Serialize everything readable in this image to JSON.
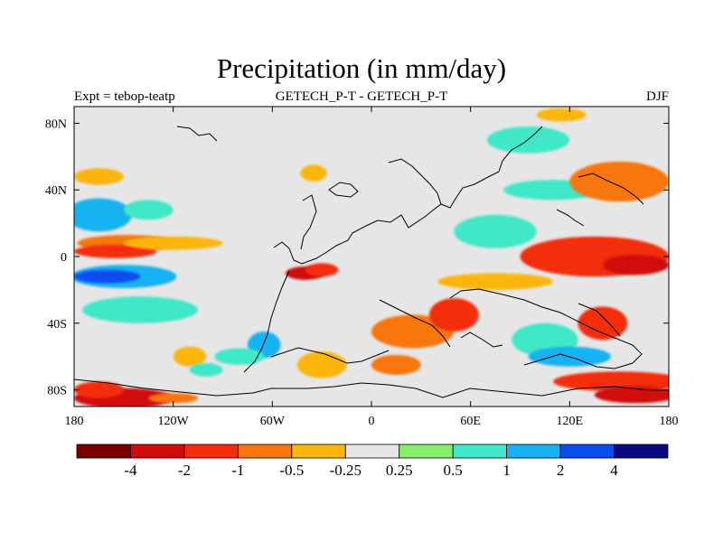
{
  "title": "Precipitation (in mm/day)",
  "left_label": "Expt = tebop-teatp",
  "center_label": "GETECH_P-T - GETECH_P-T",
  "right_label": "DJF",
  "colors": {
    "c1": "#7a0000",
    "c2": "#d10a0a",
    "c3": "#f22d0d",
    "c4": "#f7760e",
    "c5": "#fbb50d",
    "neutral": "#e6e6e6",
    "c6": "#86ef6a",
    "c7": "#3fe8c8",
    "c8": "#18b2f2",
    "c9": "#0b4ef0",
    "c10": "#0a0a80",
    "coast": "#000000"
  },
  "colorbar": {
    "bins": [
      "#7a0000",
      "#d10a0a",
      "#f22d0d",
      "#f7760e",
      "#fbb50d",
      "#e6e6e6",
      "#86ef6a",
      "#3fe8c8",
      "#18b2f2",
      "#0b4ef0",
      "#0a0a80"
    ],
    "labels": [
      "-4",
      "-2",
      "-1",
      "-0.5",
      "-0.25",
      "0.25",
      "0.5",
      "1",
      "2",
      "4"
    ]
  },
  "chart_data": {
    "type": "heatmap",
    "title": "Precipitation (in mm/day)",
    "xlabel": "",
    "ylabel": "",
    "xlim": [
      -180,
      180
    ],
    "ylim": [
      -90,
      90
    ],
    "x_ticks": [
      -180,
      -120,
      -60,
      0,
      60,
      120,
      180
    ],
    "x_tick_labels": [
      "180",
      "120W",
      "60W",
      "0",
      "60E",
      "120E",
      "180"
    ],
    "y_ticks": [
      80,
      40,
      0,
      -40,
      -80
    ],
    "y_tick_labels": [
      "80N",
      "40N",
      "0",
      "40S",
      "80S"
    ],
    "levels": [
      -4,
      -2,
      -1,
      -0.5,
      -0.25,
      0.25,
      0.5,
      1,
      2,
      4
    ],
    "blobs": [
      {
        "lon": -148,
        "lat": 8,
        "rlon": 30,
        "rlat": 5,
        "v": -0.6
      },
      {
        "lon": -155,
        "lat": 3,
        "rlon": 25,
        "rlat": 4,
        "v": -1.5
      },
      {
        "lon": -120,
        "lat": 8,
        "rlon": 30,
        "rlat": 4,
        "v": -0.3
      },
      {
        "lon": -150,
        "lat": -12,
        "rlon": 32,
        "rlat": 7,
        "v": 1.5
      },
      {
        "lon": -160,
        "lat": -12,
        "rlon": 20,
        "rlat": 4,
        "v": 3.2
      },
      {
        "lon": -165,
        "lat": 25,
        "rlon": 20,
        "rlat": 10,
        "v": 1.5
      },
      {
        "lon": -135,
        "lat": 28,
        "rlon": 15,
        "rlat": 6,
        "v": 0.8
      },
      {
        "lon": -140,
        "lat": -32,
        "rlon": 35,
        "rlat": 8,
        "v": 0.6
      },
      {
        "lon": -165,
        "lat": 48,
        "rlon": 15,
        "rlat": 5,
        "v": -0.3
      },
      {
        "lon": -150,
        "lat": -85,
        "rlon": 30,
        "rlat": 6,
        "v": -2.5
      },
      {
        "lon": -165,
        "lat": -80,
        "rlon": 15,
        "rlat": 5,
        "v": -1.2
      },
      {
        "lon": -120,
        "lat": -85,
        "rlon": 15,
        "rlat": 3,
        "v": -0.8
      },
      {
        "lon": -110,
        "lat": -60,
        "rlon": 10,
        "rlat": 6,
        "v": -0.4
      },
      {
        "lon": -100,
        "lat": -68,
        "rlon": 10,
        "rlat": 4,
        "v": 0.6
      },
      {
        "lon": -65,
        "lat": -53,
        "rlon": 10,
        "rlat": 8,
        "v": 1.3
      },
      {
        "lon": -80,
        "lat": -60,
        "rlon": 15,
        "rlat": 5,
        "v": 0.7
      },
      {
        "lon": -40,
        "lat": -10,
        "rlon": 12,
        "rlat": 4,
        "v": -3.0
      },
      {
        "lon": -30,
        "lat": -8,
        "rlon": 10,
        "rlat": 4,
        "v": -1.5
      },
      {
        "lon": -35,
        "lat": 50,
        "rlon": 8,
        "rlat": 5,
        "v": -0.5
      },
      {
        "lon": -30,
        "lat": -65,
        "rlon": 15,
        "rlat": 8,
        "v": -0.3
      },
      {
        "lon": 15,
        "lat": -65,
        "rlon": 15,
        "rlat": 6,
        "v": -1.0
      },
      {
        "lon": 25,
        "lat": -45,
        "rlon": 25,
        "rlat": 10,
        "v": -0.8
      },
      {
        "lon": 50,
        "lat": -35,
        "rlon": 15,
        "rlat": 10,
        "v": -1.8
      },
      {
        "lon": 75,
        "lat": -15,
        "rlon": 35,
        "rlat": 5,
        "v": -0.4
      },
      {
        "lon": 110,
        "lat": 40,
        "rlon": 30,
        "rlat": 6,
        "v": 0.7
      },
      {
        "lon": 75,
        "lat": 15,
        "rlon": 25,
        "rlat": 10,
        "v": 0.6
      },
      {
        "lon": 135,
        "lat": 0,
        "rlon": 45,
        "rlat": 12,
        "v": -1.5
      },
      {
        "lon": 160,
        "lat": -5,
        "rlon": 20,
        "rlat": 6,
        "v": -3.0
      },
      {
        "lon": 150,
        "lat": 45,
        "rlon": 30,
        "rlat": 12,
        "v": -1.0
      },
      {
        "lon": 140,
        "lat": -40,
        "rlon": 15,
        "rlat": 10,
        "v": -1.5
      },
      {
        "lon": 105,
        "lat": -50,
        "rlon": 20,
        "rlat": 10,
        "v": 0.7
      },
      {
        "lon": 120,
        "lat": -60,
        "rlon": 25,
        "rlat": 6,
        "v": 1.6
      },
      {
        "lon": 150,
        "lat": -75,
        "rlon": 40,
        "rlat": 6,
        "v": -1.8
      },
      {
        "lon": 160,
        "lat": -83,
        "rlon": 25,
        "rlat": 5,
        "v": -3.5
      },
      {
        "lon": 95,
        "lat": 70,
        "rlon": 25,
        "rlat": 8,
        "v": 0.7
      },
      {
        "lon": 115,
        "lat": 85,
        "rlon": 15,
        "rlat": 4,
        "v": -0.3
      }
    ]
  }
}
